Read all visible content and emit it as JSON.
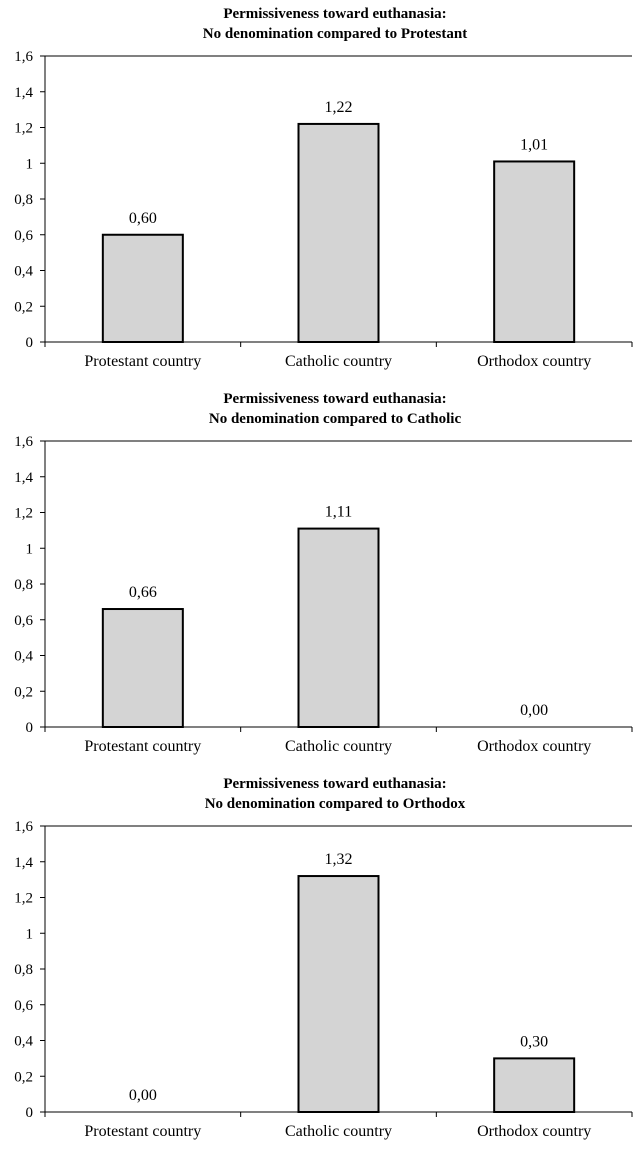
{
  "chart_data": [
    {
      "type": "bar",
      "title": "Permissiveness toward euthanasia:",
      "subtitle": "No denomination compared to Protestant",
      "categories": [
        "Protestant country",
        "Catholic country",
        "Orthodox country"
      ],
      "values": [
        0.6,
        1.22,
        1.01
      ],
      "data_labels": [
        "0,60",
        "1,22",
        "1,01"
      ],
      "y_ticks": [
        "0",
        "0,2",
        "0,4",
        "0,6",
        "0,8",
        "1",
        "1,2",
        "1,4",
        "1,6"
      ],
      "ylim": [
        0,
        1.6
      ],
      "grid": false,
      "legend": "none",
      "bar_color": "#d4d4d4"
    },
    {
      "type": "bar",
      "title": "Permissiveness toward euthanasia:",
      "subtitle": "No denomination compared to Catholic",
      "categories": [
        "Protestant country",
        "Catholic country",
        "Orthodox country"
      ],
      "values": [
        0.66,
        1.11,
        0.0
      ],
      "data_labels": [
        "0,66",
        "1,11",
        "0,00"
      ],
      "y_ticks": [
        "0",
        "0,2",
        "0,4",
        "0,6",
        "0,8",
        "1",
        "1,2",
        "1,4",
        "1,6"
      ],
      "ylim": [
        0,
        1.6
      ],
      "grid": false,
      "legend": "none",
      "bar_color": "#d4d4d4"
    },
    {
      "type": "bar",
      "title": "Permissiveness toward euthanasia:",
      "subtitle": "No denomination compared to Orthodox",
      "categories": [
        "Protestant country",
        "Catholic country",
        "Orthodox country"
      ],
      "values": [
        0.0,
        1.32,
        0.3
      ],
      "data_labels": [
        "0,00",
        "1,32",
        "0,30"
      ],
      "y_ticks": [
        "0",
        "0,2",
        "0,4",
        "0,6",
        "0,8",
        "1",
        "1,2",
        "1,4",
        "1,6"
      ],
      "ylim": [
        0,
        1.6
      ],
      "grid": false,
      "legend": "none",
      "bar_color": "#d4d4d4"
    }
  ]
}
